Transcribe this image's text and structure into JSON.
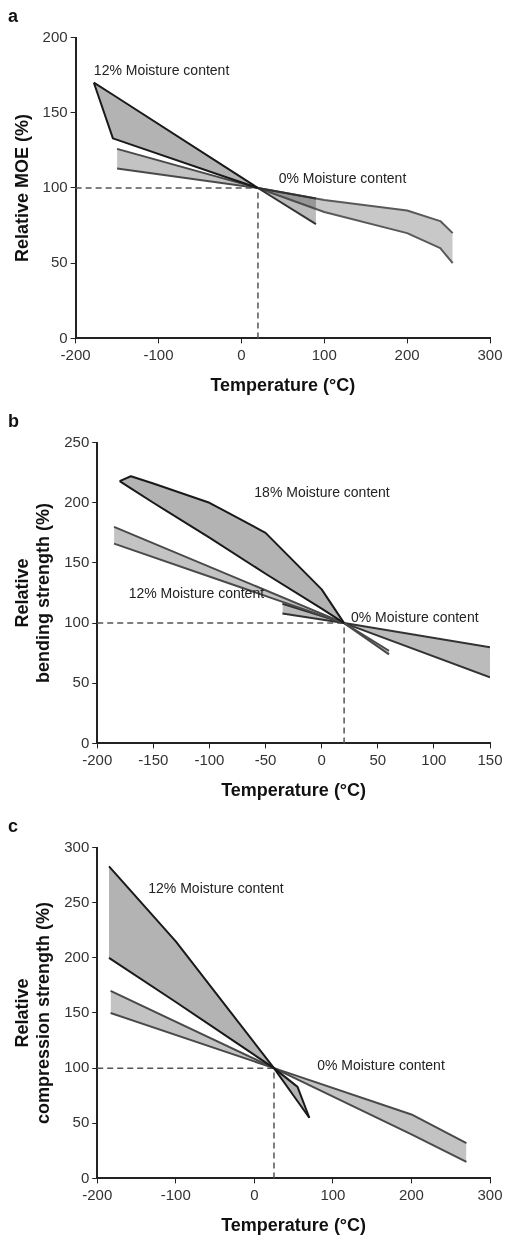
{
  "chart_data": [
    {
      "type": "area",
      "title": "a",
      "xlabel": "Temperature (°C)",
      "ylabel": "Relative MOE (%)",
      "xlim": [
        -200,
        300
      ],
      "xticks": [
        -200,
        -100,
        0,
        100,
        200,
        300
      ],
      "ylim": [
        0,
        200
      ],
      "yticks": [
        0,
        50,
        100,
        150,
        200
      ],
      "series": [
        {
          "type": "line",
          "color": "#1a1a1a",
          "x": [
            -178,
            -155,
            20
          ],
          "values": [
            170,
            162,
            100
          ],
          "upper": [
            170,
            162,
            100
          ],
          "lower": [
            170,
            133,
            100
          ]
        },
        {
          "type": "line",
          "color": "#1a1a1a",
          "x": [
            -178,
            -155,
            20
          ],
          "values": [
            170,
            133,
            100
          ]
        },
        {
          "type": "line",
          "color": "#4a4a4a",
          "x": [
            -150,
            20
          ],
          "values": [
            126,
            100
          ],
          "upper": [
            126,
            100
          ],
          "lower": [
            113,
            100
          ]
        },
        {
          "type": "line",
          "color": "#4a4a4a",
          "x": [
            -150,
            20
          ],
          "values": [
            113,
            100
          ]
        },
        {
          "type": "line",
          "color": "#333333",
          "x": [
            20,
            90
          ],
          "values": [
            100,
            93
          ],
          "upper": [
            100,
            93
          ],
          "lower": [
            100,
            76
          ]
        },
        {
          "type": "line",
          "color": "#333333",
          "x": [
            20,
            90
          ],
          "values": [
            100,
            76
          ]
        },
        {
          "type": "line",
          "color": "#5a5a5a",
          "x": [
            20,
            100,
            200,
            240,
            255
          ],
          "values": [
            100,
            92,
            85,
            78,
            70
          ],
          "upper": [
            100,
            92,
            85,
            78,
            70
          ],
          "lower": [
            100,
            84,
            70,
            60,
            50
          ]
        },
        {
          "type": "line",
          "color": "#5a5a5a",
          "x": [
            20,
            100,
            200,
            240,
            255
          ],
          "values": [
            100,
            84,
            70,
            60,
            50
          ]
        }
      ],
      "ref_lines": [
        {
          "axis": "y",
          "value": 100,
          "line_style": "dashed"
        },
        {
          "axis": "x",
          "value": 20,
          "line_style": "dashed"
        }
      ],
      "annotations": [
        "12% Moisture content",
        "0% Moisture content"
      ]
    },
    {
      "type": "area",
      "title": "b",
      "xlabel": "Temperature (°C)",
      "ylabel": "Relative bending strength (%)",
      "xlim": [
        -200,
        150
      ],
      "xticks": [
        -200,
        -150,
        -100,
        -50,
        0,
        50,
        100,
        150
      ],
      "ylim": [
        0,
        250
      ],
      "yticks": [
        0,
        50,
        100,
        150,
        200,
        250
      ],
      "series": [
        {
          "type": "line",
          "color": "#1a1a1a",
          "x": [
            -180,
            -170,
            -150,
            -100,
            -50,
            0,
            20
          ],
          "values": [
            218,
            222,
            216,
            200,
            175,
            128,
            100
          ],
          "upper": [
            218,
            222,
            216,
            200,
            175,
            128,
            100
          ],
          "lower": [
            218,
            212,
            200,
            171,
            141,
            112,
            100
          ]
        },
        {
          "type": "line",
          "color": "#1a1a1a",
          "x": [
            -180,
            -170,
            -150,
            -100,
            -50,
            0,
            20
          ],
          "values": [
            218,
            212,
            200,
            171,
            141,
            112,
            100
          ]
        },
        {
          "type": "line",
          "color": "#4a4a4a",
          "x": [
            -185,
            20,
            60
          ],
          "values": [
            180,
            100,
            77
          ],
          "upper": [
            180,
            100,
            77
          ],
          "lower": [
            166,
            100,
            74
          ]
        },
        {
          "type": "line",
          "color": "#4a4a4a",
          "x": [
            -185,
            20,
            60
          ],
          "values": [
            166,
            100,
            74
          ]
        },
        {
          "type": "line",
          "color": "#333333",
          "x": [
            -35,
            20,
            150
          ],
          "values": [
            116,
            100,
            80
          ],
          "upper": [
            116,
            100,
            80
          ],
          "lower": [
            108,
            100,
            55
          ]
        },
        {
          "type": "line",
          "color": "#333333",
          "x": [
            -35,
            20,
            150
          ],
          "values": [
            108,
            100,
            55
          ]
        }
      ],
      "ref_lines": [
        {
          "axis": "y",
          "value": 100,
          "line_style": "dashed"
        },
        {
          "axis": "x",
          "value": 20,
          "line_style": "dashed"
        }
      ],
      "annotations": [
        "18% Moisture content",
        "12% Moisture content",
        "0% Moisture content"
      ]
    },
    {
      "type": "area",
      "title": "c",
      "xlabel": "Temperature (°C)",
      "ylabel": "Relative compression strength (%)",
      "xlim": [
        -200,
        300
      ],
      "xticks": [
        -200,
        -100,
        0,
        100,
        200,
        300
      ],
      "ylim": [
        0,
        300
      ],
      "yticks": [
        0,
        50,
        100,
        150,
        200,
        250,
        300
      ],
      "series": [
        {
          "type": "line",
          "color": "#1a1a1a",
          "x": [
            -185,
            -100,
            25,
            55,
            70
          ],
          "values": [
            283,
            215,
            100,
            83,
            55
          ],
          "upper": [
            283,
            215,
            100,
            83,
            55
          ],
          "lower": [
            200,
            160,
            100,
            70,
            55
          ]
        },
        {
          "type": "line",
          "color": "#1a1a1a",
          "x": [
            -185,
            -100,
            25,
            55,
            70
          ],
          "values": [
            200,
            160,
            100,
            70,
            55
          ]
        },
        {
          "type": "line",
          "color": "#4a4a4a",
          "x": [
            -183,
            25,
            200,
            270
          ],
          "values": [
            170,
            100,
            58,
            32
          ],
          "upper": [
            170,
            100,
            58,
            32
          ],
          "lower": [
            150,
            100,
            40,
            15
          ]
        },
        {
          "type": "line",
          "color": "#4a4a4a",
          "x": [
            -183,
            25,
            200,
            270
          ],
          "values": [
            150,
            100,
            40,
            15
          ]
        }
      ],
      "ref_lines": [
        {
          "axis": "y",
          "value": 100,
          "line_style": "dashed"
        },
        {
          "axis": "x",
          "value": 25,
          "line_style": "dashed"
        }
      ],
      "annotations": [
        "12% Moisture content",
        "0% Moisture content"
      ]
    }
  ]
}
